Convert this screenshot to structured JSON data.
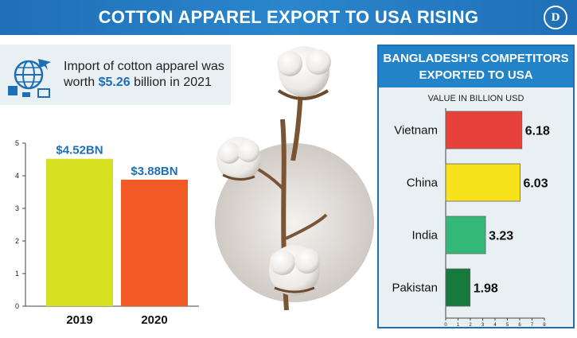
{
  "header": {
    "title": "COTTON APPAREL EXPORT TO USA RISING",
    "logo_text": "D"
  },
  "callout": {
    "text_before": "Import of cotton apparel was worth ",
    "highlight": "$5.26",
    "text_after": " billion in 2021",
    "icon": "globe-trade-icon"
  },
  "colors": {
    "accent": "#1f6fb6",
    "bar2019": "#d5e021",
    "bar2020": "#f15a24"
  },
  "chart_data": [
    {
      "type": "bar",
      "categories": [
        "2019",
        "2020"
      ],
      "values": [
        4.52,
        3.88
      ],
      "data_labels": [
        "$4.52BN",
        "$3.88BN"
      ],
      "colors": [
        "#d5e021",
        "#f15a24"
      ],
      "yticks": [
        "0",
        "1",
        "2",
        "3",
        "4",
        "5"
      ],
      "ylim": [
        0,
        5
      ],
      "grid": false
    },
    {
      "type": "bar",
      "orientation": "horizontal",
      "title": "BANGLADESH'S COMPETITORS EXPORTED TO USA",
      "subtitle": "VALUE IN BILLION USD",
      "categories": [
        "Vietnam",
        "China",
        "India",
        "Pakistan"
      ],
      "values": [
        6.18,
        6.03,
        3.23,
        1.98
      ],
      "data_labels": [
        "6.18",
        "6.03",
        "3.23",
        "1.98"
      ],
      "colors": [
        "#e8413a",
        "#f7e21c",
        "#33b877",
        "#167a3e"
      ],
      "xticks": [
        "0",
        "1",
        "2",
        "3",
        "4",
        "5",
        "6",
        "7",
        "8"
      ],
      "xlim": [
        0,
        8
      ],
      "grid": false
    }
  ]
}
